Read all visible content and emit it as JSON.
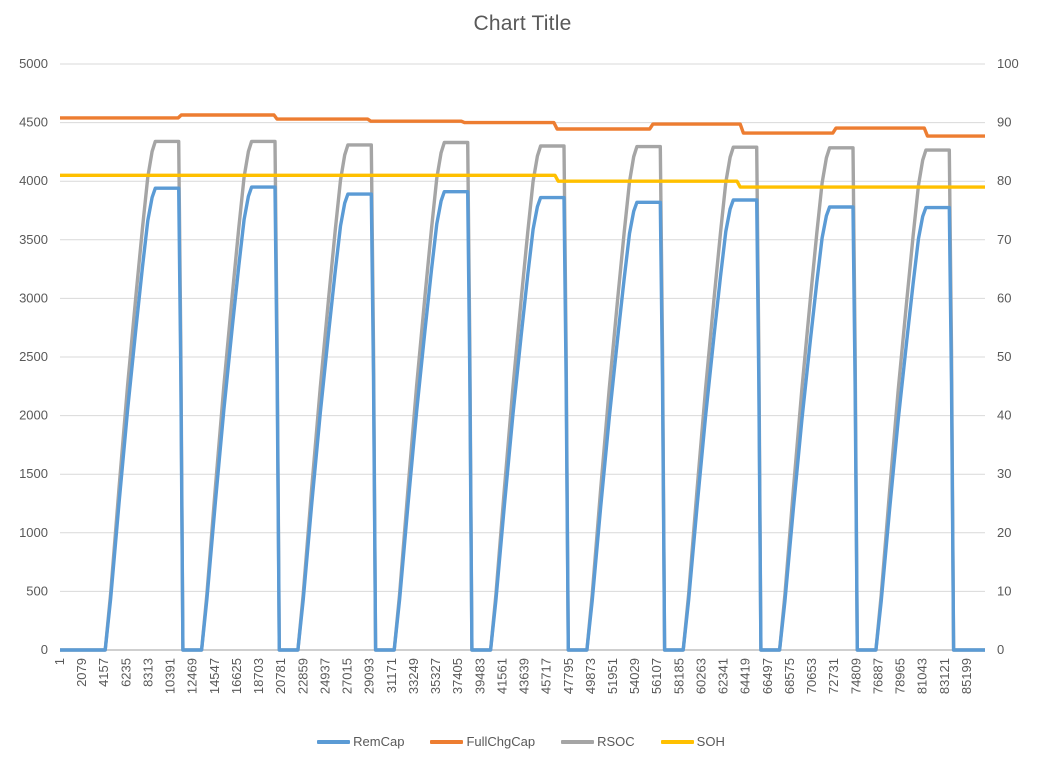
{
  "title": "Chart Title",
  "colors": {
    "background": "#FFFFFF",
    "grid": "#D9D9D9",
    "axis_line": "#BFBFBF",
    "text": "#595959",
    "remcap": "#5B9BD5",
    "fullchgcap": "#ED7D31",
    "rsoc": "#A5A5A5",
    "soh": "#FFC000"
  },
  "legend": [
    {
      "label": "RemCap",
      "color": "#5B9BD5"
    },
    {
      "label": "FullChgCap",
      "color": "#ED7D31"
    },
    {
      "label": "RSOC",
      "color": "#A5A5A5"
    },
    {
      "label": "SOH",
      "color": "#FFC000"
    }
  ],
  "chart_data": {
    "type": "line",
    "title": "Chart Title",
    "grid": true,
    "legend_position": "bottom",
    "x_domain": [
      0,
      86900
    ],
    "x_tick_labels": [
      "1",
      "2079",
      "4157",
      "6235",
      "8313",
      "10391",
      "12469",
      "14547",
      "16625",
      "18703",
      "20781",
      "22859",
      "24937",
      "27015",
      "29093",
      "31171",
      "33249",
      "35327",
      "37405",
      "39483",
      "41561",
      "43639",
      "45717",
      "47795",
      "49873",
      "51951",
      "54029",
      "56107",
      "58185",
      "60263",
      "62341",
      "64419",
      "66497",
      "68575",
      "70653",
      "72731",
      "74809",
      "76887",
      "78965",
      "81043",
      "83121",
      "85199"
    ],
    "x_tick_start": 1,
    "x_tick_step": 2078,
    "y_left": {
      "min": 0,
      "max": 5000,
      "step": 500,
      "tick_labels": [
        "5000",
        "4500",
        "4000",
        "3500",
        "3000",
        "2500",
        "2000",
        "1500",
        "1000",
        "500",
        "0"
      ]
    },
    "y_right": {
      "min": 0,
      "max": 100,
      "step": 10,
      "tick_labels": [
        "100",
        "90",
        "80",
        "70",
        "60",
        "50",
        "40",
        "30",
        "20",
        "10",
        "0"
      ]
    },
    "cycle_model": {
      "comment_visible_behavior": "nine charge/discharge cycles; capacity rises from 0, plateaus, falls back to 0",
      "cycle_starts": [
        4250,
        13300,
        22350,
        31400,
        40450,
        49500,
        58550,
        67600,
        76650
      ],
      "rise_profile": [
        [
          0,
          0
        ],
        [
          500,
          0.11
        ],
        [
          1300,
          0.32
        ],
        [
          2100,
          0.52
        ],
        [
          2900,
          0.7
        ],
        [
          3500,
          0.83
        ],
        [
          4000,
          0.93
        ],
        [
          4400,
          0.98
        ],
        [
          4700,
          1.0
        ]
      ],
      "plateau_end": 6900,
      "fall_profile": [
        [
          7100,
          0.6
        ],
        [
          7300,
          0
        ]
      ]
    },
    "series": [
      {
        "name": "RemCap",
        "axis": "left",
        "color": "#5B9BD5",
        "pattern": "cycles",
        "peaks": [
          3940,
          3950,
          3890,
          3910,
          3860,
          3820,
          3840,
          3780,
          3775
        ]
      },
      {
        "name": "FullChgCap",
        "axis": "left",
        "color": "#ED7D31",
        "pattern": "points",
        "points": [
          [
            0,
            4540
          ],
          [
            11100,
            4540
          ],
          [
            11400,
            4565
          ],
          [
            20100,
            4565
          ],
          [
            20400,
            4530
          ],
          [
            28900,
            4530
          ],
          [
            29200,
            4512
          ],
          [
            37700,
            4512
          ],
          [
            38000,
            4500
          ],
          [
            46400,
            4500
          ],
          [
            46700,
            4445
          ],
          [
            55400,
            4445
          ],
          [
            55700,
            4487
          ],
          [
            63900,
            4487
          ],
          [
            64200,
            4410
          ],
          [
            72600,
            4410
          ],
          [
            72900,
            4453
          ],
          [
            81200,
            4453
          ],
          [
            81500,
            4385
          ],
          [
            86900,
            4385
          ]
        ]
      },
      {
        "name": "RSOC",
        "axis": "right",
        "color": "#A5A5A5",
        "pattern": "cycles",
        "peaks": [
          86.8,
          86.8,
          86.2,
          86.6,
          86.0,
          85.9,
          85.8,
          85.7,
          85.3
        ]
      },
      {
        "name": "SOH",
        "axis": "right",
        "color": "#FFC000",
        "pattern": "points",
        "points": [
          [
            0,
            81
          ],
          [
            46500,
            81
          ],
          [
            46800,
            80
          ],
          [
            63600,
            80
          ],
          [
            63900,
            79
          ],
          [
            86900,
            79
          ]
        ]
      }
    ]
  }
}
